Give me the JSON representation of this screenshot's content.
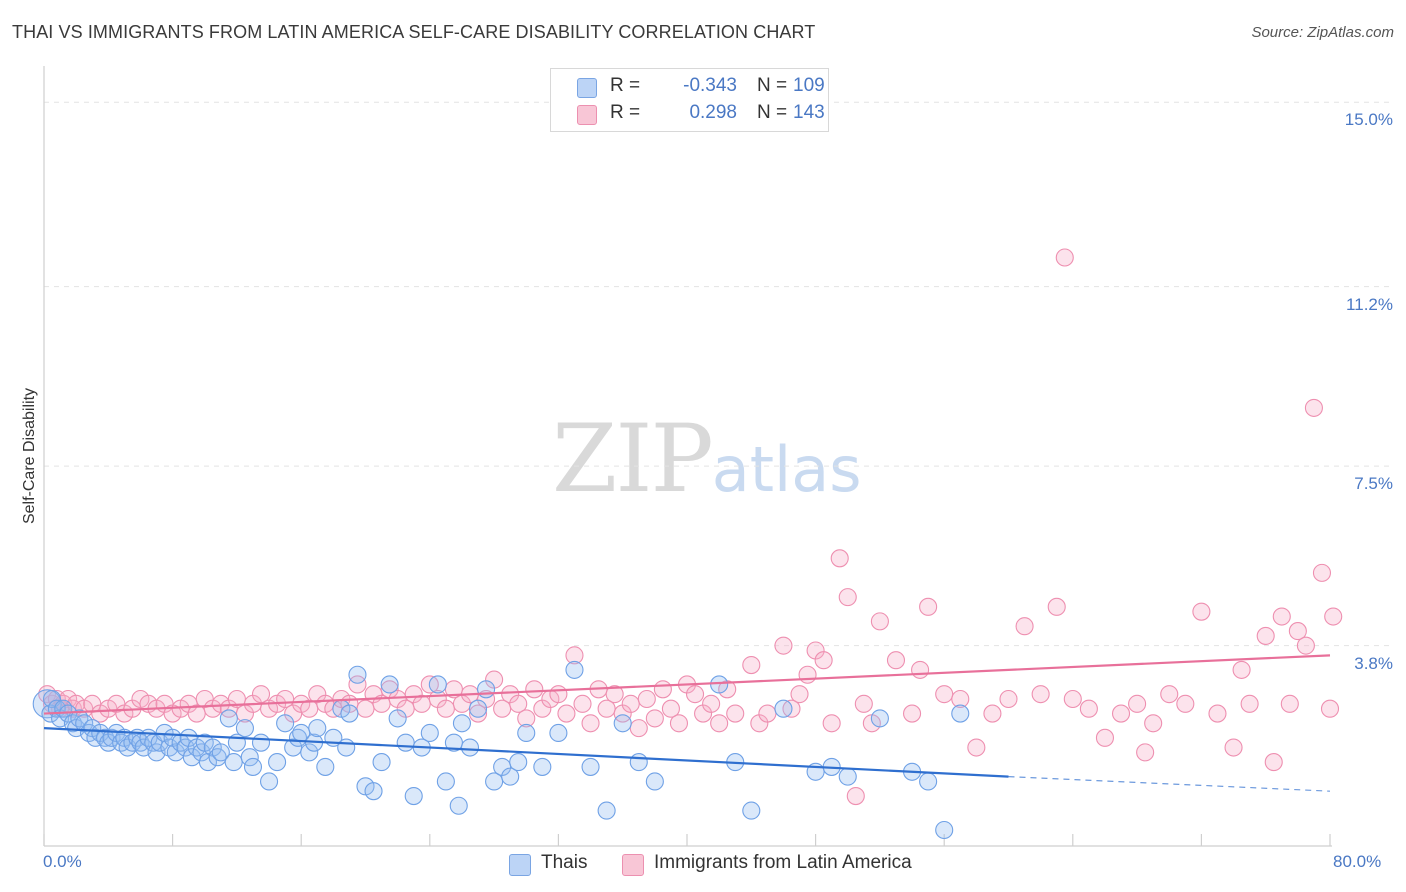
{
  "header": {
    "title": "THAI VS IMMIGRANTS FROM LATIN AMERICA SELF-CARE DISABILITY CORRELATION CHART",
    "source": "Source: ZipAtlas.com"
  },
  "watermark": {
    "zip": "ZIP",
    "atlas": "atlas"
  },
  "legend": {
    "rows": [
      {
        "r_label": "R =",
        "r_value": "-0.343",
        "n_label": "N =",
        "n_value": "109",
        "color": "#a9c8f2"
      },
      {
        "r_label": "R =",
        "r_value": "0.298",
        "n_label": "N =",
        "n_value": "143",
        "color": "#f5b3c8"
      }
    ]
  },
  "bottom_legend": {
    "items": [
      {
        "label": "Thais",
        "color": "#a9c8f2"
      },
      {
        "label": "Immigrants from Latin America",
        "color": "#f5b3c8"
      }
    ]
  },
  "chart_data": {
    "type": "scatter",
    "title": "THAI VS IMMIGRANTS FROM LATIN AMERICA SELF-CARE DISABILITY CORRELATION CHART",
    "xlabel": "",
    "ylabel": "Self-Care Disability",
    "xlim": [
      0,
      80
    ],
    "ylim": [
      0,
      15.5
    ],
    "x_tick_labels": [
      "0.0%",
      "80.0%"
    ],
    "y_ticks": [
      3.8,
      7.5,
      11.2,
      15.0
    ],
    "y_tick_labels": [
      "3.8%",
      "7.5%",
      "11.2%",
      "15.0%"
    ],
    "grid": true,
    "legend_position": "top-center",
    "colors": {
      "thais": "#6fa1e6",
      "thais_fill": "rgba(150,190,240,0.35)",
      "thais_line": "#2f6fcf",
      "latam": "#ee8fb0",
      "latam_fill": "rgba(245,175,200,0.35)",
      "latam_line": "#e8709a"
    },
    "series": [
      {
        "name": "Thais",
        "trend": {
          "x0": 0,
          "y0": 2.1,
          "x1": 60,
          "y1": 1.1,
          "dash_to_x": 80,
          "dash_to_y": 0.8
        },
        "points": [
          [
            0.2,
            2.6
          ],
          [
            0.4,
            2.4
          ],
          [
            0.5,
            2.7
          ],
          [
            0.8,
            2.5
          ],
          [
            1.0,
            2.3
          ],
          [
            1.2,
            2.5
          ],
          [
            1.5,
            2.4
          ],
          [
            1.8,
            2.2
          ],
          [
            2.0,
            2.1
          ],
          [
            2.2,
            2.3
          ],
          [
            2.5,
            2.2
          ],
          [
            2.8,
            2.0
          ],
          [
            3.0,
            2.1
          ],
          [
            3.2,
            1.9
          ],
          [
            3.5,
            2.0
          ],
          [
            3.8,
            1.9
          ],
          [
            4.0,
            1.8
          ],
          [
            4.2,
            1.9
          ],
          [
            4.5,
            2.0
          ],
          [
            4.8,
            1.8
          ],
          [
            5.0,
            1.9
          ],
          [
            5.2,
            1.7
          ],
          [
            5.5,
            1.8
          ],
          [
            5.8,
            1.9
          ],
          [
            6.0,
            1.8
          ],
          [
            6.2,
            1.7
          ],
          [
            6.5,
            1.9
          ],
          [
            6.8,
            1.8
          ],
          [
            7.0,
            1.6
          ],
          [
            7.2,
            1.8
          ],
          [
            7.5,
            2.0
          ],
          [
            7.8,
            1.7
          ],
          [
            8.0,
            1.9
          ],
          [
            8.2,
            1.6
          ],
          [
            8.5,
            1.8
          ],
          [
            8.8,
            1.7
          ],
          [
            9.0,
            1.9
          ],
          [
            9.2,
            1.5
          ],
          [
            9.5,
            1.7
          ],
          [
            9.8,
            1.6
          ],
          [
            10.0,
            1.8
          ],
          [
            10.2,
            1.4
          ],
          [
            10.5,
            1.7
          ],
          [
            10.8,
            1.5
          ],
          [
            11.0,
            1.6
          ],
          [
            11.5,
            2.3
          ],
          [
            11.8,
            1.4
          ],
          [
            12.0,
            1.8
          ],
          [
            12.5,
            2.1
          ],
          [
            12.8,
            1.5
          ],
          [
            13.0,
            1.3
          ],
          [
            13.5,
            1.8
          ],
          [
            14.0,
            1.0
          ],
          [
            14.5,
            1.4
          ],
          [
            15.0,
            2.2
          ],
          [
            15.5,
            1.7
          ],
          [
            15.8,
            1.9
          ],
          [
            16.0,
            2.0
          ],
          [
            16.5,
            1.6
          ],
          [
            16.8,
            1.8
          ],
          [
            17.0,
            2.1
          ],
          [
            17.5,
            1.3
          ],
          [
            18.0,
            1.9
          ],
          [
            18.5,
            2.5
          ],
          [
            18.8,
            1.7
          ],
          [
            19.0,
            2.4
          ],
          [
            19.5,
            3.2
          ],
          [
            20.0,
            0.9
          ],
          [
            20.5,
            0.8
          ],
          [
            21.0,
            1.4
          ],
          [
            21.5,
            3.0
          ],
          [
            22.0,
            2.3
          ],
          [
            22.5,
            1.8
          ],
          [
            23.0,
            0.7
          ],
          [
            23.5,
            1.7
          ],
          [
            24.0,
            2.0
          ],
          [
            24.5,
            3.0
          ],
          [
            25.0,
            1.0
          ],
          [
            25.5,
            1.8
          ],
          [
            25.8,
            0.5
          ],
          [
            26.0,
            2.2
          ],
          [
            26.5,
            1.7
          ],
          [
            27.0,
            2.5
          ],
          [
            27.5,
            2.9
          ],
          [
            28.0,
            1.0
          ],
          [
            28.5,
            1.3
          ],
          [
            29.0,
            1.1
          ],
          [
            29.5,
            1.4
          ],
          [
            30.0,
            2.0
          ],
          [
            31.0,
            1.3
          ],
          [
            32.0,
            2.0
          ],
          [
            33.0,
            3.3
          ],
          [
            34.0,
            1.3
          ],
          [
            35.0,
            0.4
          ],
          [
            36.0,
            2.2
          ],
          [
            37.0,
            1.4
          ],
          [
            38.0,
            1.0
          ],
          [
            42.0,
            3.0
          ],
          [
            43.0,
            1.4
          ],
          [
            44.0,
            0.4
          ],
          [
            46.0,
            2.5
          ],
          [
            48.0,
            1.2
          ],
          [
            49.0,
            1.3
          ],
          [
            50.0,
            1.1
          ],
          [
            52.0,
            2.3
          ],
          [
            54.0,
            1.2
          ],
          [
            55.0,
            1.0
          ],
          [
            56.0,
            0.0
          ],
          [
            57.0,
            2.4
          ]
        ]
      },
      {
        "name": "Immigrants from Latin America",
        "trend": {
          "x0": 0,
          "y0": 2.4,
          "x1": 80,
          "y1": 3.6
        },
        "points": [
          [
            0.2,
            2.8
          ],
          [
            0.5,
            2.6
          ],
          [
            0.8,
            2.7
          ],
          [
            1.0,
            2.5
          ],
          [
            1.2,
            2.6
          ],
          [
            1.5,
            2.7
          ],
          [
            1.8,
            2.5
          ],
          [
            2.0,
            2.6
          ],
          [
            2.5,
            2.5
          ],
          [
            3.0,
            2.6
          ],
          [
            3.5,
            2.4
          ],
          [
            4.0,
            2.5
          ],
          [
            4.5,
            2.6
          ],
          [
            5.0,
            2.4
          ],
          [
            5.5,
            2.5
          ],
          [
            6.0,
            2.7
          ],
          [
            6.5,
            2.6
          ],
          [
            7.0,
            2.5
          ],
          [
            7.5,
            2.6
          ],
          [
            8.0,
            2.4
          ],
          [
            8.5,
            2.5
          ],
          [
            9.0,
            2.6
          ],
          [
            9.5,
            2.4
          ],
          [
            10.0,
            2.7
          ],
          [
            10.5,
            2.5
          ],
          [
            11.0,
            2.6
          ],
          [
            11.5,
            2.5
          ],
          [
            12.0,
            2.7
          ],
          [
            12.5,
            2.4
          ],
          [
            13.0,
            2.6
          ],
          [
            13.5,
            2.8
          ],
          [
            14.0,
            2.5
          ],
          [
            14.5,
            2.6
          ],
          [
            15.0,
            2.7
          ],
          [
            15.5,
            2.4
          ],
          [
            16.0,
            2.6
          ],
          [
            16.5,
            2.5
          ],
          [
            17.0,
            2.8
          ],
          [
            17.5,
            2.6
          ],
          [
            18.0,
            2.5
          ],
          [
            18.5,
            2.7
          ],
          [
            19.0,
            2.6
          ],
          [
            19.5,
            3.0
          ],
          [
            20.0,
            2.5
          ],
          [
            20.5,
            2.8
          ],
          [
            21.0,
            2.6
          ],
          [
            21.5,
            2.9
          ],
          [
            22.0,
            2.7
          ],
          [
            22.5,
            2.5
          ],
          [
            23.0,
            2.8
          ],
          [
            23.5,
            2.6
          ],
          [
            24.0,
            3.0
          ],
          [
            24.5,
            2.7
          ],
          [
            25.0,
            2.5
          ],
          [
            25.5,
            2.9
          ],
          [
            26.0,
            2.6
          ],
          [
            26.5,
            2.8
          ],
          [
            27.0,
            2.4
          ],
          [
            27.5,
            2.7
          ],
          [
            28.0,
            3.1
          ],
          [
            28.5,
            2.5
          ],
          [
            29.0,
            2.8
          ],
          [
            29.5,
            2.6
          ],
          [
            30.0,
            2.3
          ],
          [
            30.5,
            2.9
          ],
          [
            31.0,
            2.5
          ],
          [
            31.5,
            2.7
          ],
          [
            32.0,
            2.8
          ],
          [
            32.5,
            2.4
          ],
          [
            33.0,
            3.6
          ],
          [
            33.5,
            2.6
          ],
          [
            34.0,
            2.2
          ],
          [
            34.5,
            2.9
          ],
          [
            35.0,
            2.5
          ],
          [
            35.5,
            2.8
          ],
          [
            36.0,
            2.4
          ],
          [
            36.5,
            2.6
          ],
          [
            37.0,
            2.1
          ],
          [
            37.5,
            2.7
          ],
          [
            38.0,
            2.3
          ],
          [
            38.5,
            2.9
          ],
          [
            39.0,
            2.5
          ],
          [
            39.5,
            2.2
          ],
          [
            40.0,
            3.0
          ],
          [
            40.5,
            2.8
          ],
          [
            41.0,
            2.4
          ],
          [
            41.5,
            2.6
          ],
          [
            42.0,
            2.2
          ],
          [
            42.5,
            2.9
          ],
          [
            43.0,
            2.4
          ],
          [
            44.0,
            3.4
          ],
          [
            44.5,
            2.2
          ],
          [
            45.0,
            2.4
          ],
          [
            46.0,
            3.8
          ],
          [
            46.5,
            2.5
          ],
          [
            47.0,
            2.8
          ],
          [
            47.5,
            3.2
          ],
          [
            48.0,
            3.7
          ],
          [
            48.5,
            3.5
          ],
          [
            49.0,
            2.2
          ],
          [
            49.5,
            5.6
          ],
          [
            50.0,
            4.8
          ],
          [
            50.5,
            0.7
          ],
          [
            51.0,
            2.6
          ],
          [
            51.5,
            2.2
          ],
          [
            52.0,
            4.3
          ],
          [
            53.0,
            3.5
          ],
          [
            54.0,
            2.4
          ],
          [
            54.5,
            3.3
          ],
          [
            55.0,
            4.6
          ],
          [
            56.0,
            2.8
          ],
          [
            57.0,
            2.7
          ],
          [
            58.0,
            1.7
          ],
          [
            59.0,
            2.4
          ],
          [
            60.0,
            2.7
          ],
          [
            61.0,
            4.2
          ],
          [
            62.0,
            2.8
          ],
          [
            63.0,
            4.6
          ],
          [
            63.5,
            11.8
          ],
          [
            64.0,
            2.7
          ],
          [
            65.0,
            2.5
          ],
          [
            66.0,
            1.9
          ],
          [
            67.0,
            2.4
          ],
          [
            68.0,
            2.6
          ],
          [
            68.5,
            1.6
          ],
          [
            69.0,
            2.2
          ],
          [
            70.0,
            2.8
          ],
          [
            71.0,
            2.6
          ],
          [
            72.0,
            4.5
          ],
          [
            73.0,
            2.4
          ],
          [
            74.0,
            1.7
          ],
          [
            74.5,
            3.3
          ],
          [
            75.0,
            2.6
          ],
          [
            76.0,
            4.0
          ],
          [
            76.5,
            1.4
          ],
          [
            77.0,
            4.4
          ],
          [
            77.5,
            2.6
          ],
          [
            78.0,
            4.1
          ],
          [
            78.5,
            3.8
          ],
          [
            79.0,
            8.7
          ],
          [
            79.5,
            5.3
          ],
          [
            80.0,
            2.5
          ],
          [
            80.2,
            4.4
          ]
        ]
      }
    ]
  }
}
